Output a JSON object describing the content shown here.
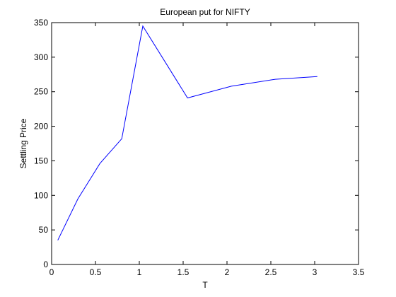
{
  "chart_data": {
    "type": "line",
    "title": "European put for NIFTY",
    "xlabel": "T",
    "ylabel": "Settling Price",
    "xlim": [
      0,
      3.5
    ],
    "ylim": [
      0,
      350
    ],
    "xticks": [
      0,
      0.5,
      1,
      1.5,
      2,
      2.5,
      3,
      3.5
    ],
    "yticks": [
      0,
      50,
      100,
      150,
      200,
      250,
      300,
      350
    ],
    "xtick_labels": [
      "0",
      "0.5",
      "1",
      "1.5",
      "2",
      "2.5",
      "3",
      "3.5"
    ],
    "ytick_labels": [
      "0",
      "50",
      "100",
      "150",
      "200",
      "250",
      "300",
      "350"
    ],
    "grid": false,
    "legend": null,
    "series": [
      {
        "color": "#0000ff",
        "x": [
          0.07,
          0.3,
          0.55,
          0.8,
          1.04,
          1.55,
          2.05,
          2.55,
          3.03
        ],
        "y": [
          35,
          95,
          146,
          182,
          345,
          241,
          258,
          268,
          272
        ]
      }
    ]
  }
}
